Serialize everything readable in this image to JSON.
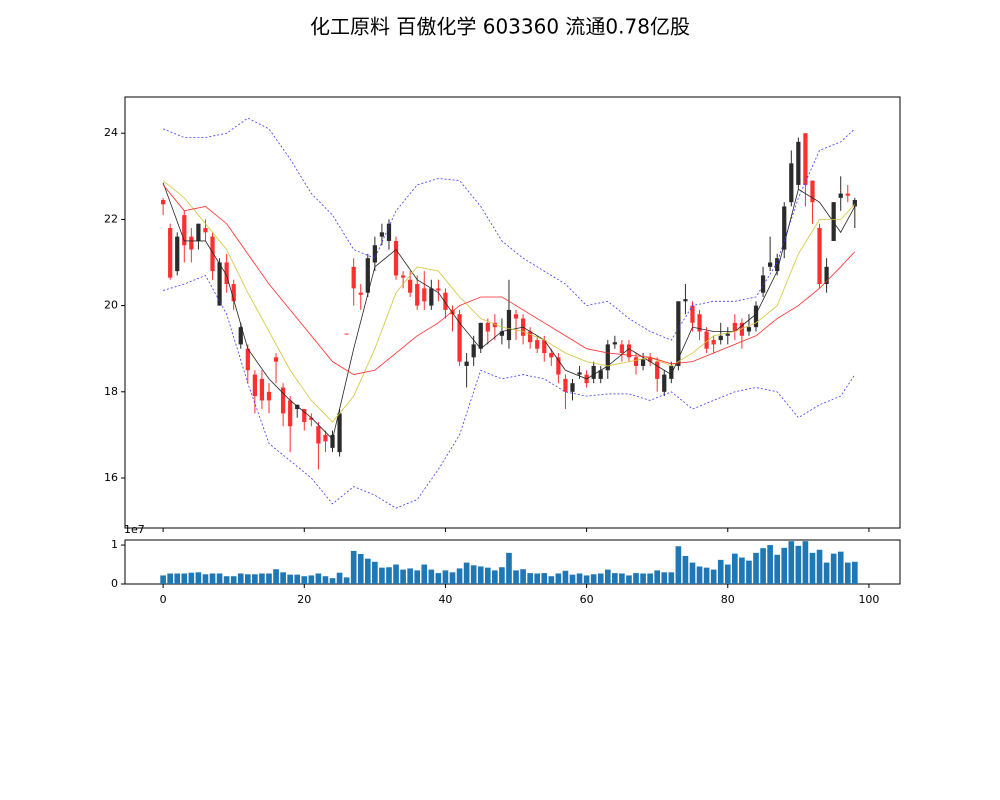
{
  "chart_data": [
    {
      "type": "candlestick",
      "title": "化工原料 百傲化学 603360 流通0.78亿股",
      "x": [
        0,
        1,
        2,
        3,
        4,
        5,
        6,
        7,
        8,
        9,
        10,
        11,
        12,
        13,
        14,
        15,
        16,
        17,
        18,
        19,
        20,
        21,
        22,
        23,
        24,
        25,
        26,
        27,
        28,
        29,
        30,
        31,
        32,
        33,
        34,
        35,
        36,
        37,
        38,
        39,
        40,
        41,
        42,
        43,
        44,
        45,
        46,
        47,
        48,
        49,
        50,
        51,
        52,
        53,
        54,
        55,
        56,
        57,
        58,
        59,
        60,
        61,
        62,
        63,
        64,
        65,
        66,
        67,
        68,
        69,
        70,
        71,
        72,
        73,
        74,
        75,
        76,
        77,
        78,
        79,
        80,
        81,
        82,
        83,
        84,
        85,
        86,
        87,
        88,
        89,
        90,
        91,
        92,
        93,
        94,
        95,
        96,
        97,
        98
      ],
      "open": [
        22.45,
        21.8,
        20.8,
        22.1,
        21.6,
        21.5,
        21.8,
        21.6,
        20.0,
        21.0,
        20.5,
        19.1,
        19.0,
        18.4,
        18.3,
        18.0,
        18.8,
        18.1,
        17.8,
        17.6,
        17.6,
        17.4,
        17.2,
        17.0,
        16.7,
        16.6,
        19.35,
        20.9,
        20.3,
        20.3,
        21.0,
        21.6,
        21.5,
        21.5,
        20.7,
        20.6,
        20.5,
        20.4,
        20.0,
        20.4,
        20.3,
        19.9,
        19.8,
        18.6,
        18.8,
        19.0,
        19.6,
        19.6,
        19.3,
        19.2,
        19.8,
        19.7,
        19.4,
        19.2,
        19.2,
        18.9,
        18.8,
        18.3,
        18.0,
        18.4,
        18.4,
        18.3,
        18.3,
        18.5,
        19.1,
        19.1,
        19.1,
        18.8,
        18.6,
        18.8,
        18.7,
        18.0,
        18.3,
        18.6,
        20.1,
        20.0,
        19.8,
        19.4,
        19.2,
        19.2,
        19.3,
        19.6,
        19.6,
        19.4,
        19.5,
        20.3,
        20.9,
        20.8,
        21.3,
        22.4,
        22.8,
        24.0,
        22.9,
        21.8,
        20.5,
        21.5,
        22.5,
        22.6,
        22.3
      ],
      "high": [
        22.5,
        21.9,
        21.7,
        22.2,
        21.8,
        21.9,
        22.0,
        21.7,
        21.1,
        21.2,
        20.6,
        19.6,
        19.1,
        18.5,
        18.5,
        18.2,
        18.9,
        18.2,
        17.9,
        17.7,
        17.6,
        17.5,
        17.3,
        17.1,
        17.1,
        17.6,
        19.35,
        21.1,
        20.5,
        21.2,
        21.6,
        21.9,
        22.0,
        21.6,
        20.8,
        20.8,
        20.7,
        20.8,
        20.6,
        20.6,
        20.4,
        20.0,
        19.9,
        18.9,
        19.3,
        19.6,
        19.7,
        19.8,
        19.7,
        20.6,
        19.9,
        19.8,
        19.5,
        19.3,
        19.3,
        19.0,
        18.9,
        18.4,
        18.3,
        18.6,
        18.5,
        18.7,
        18.6,
        19.2,
        19.3,
        19.2,
        19.2,
        18.9,
        18.9,
        18.9,
        18.8,
        18.5,
        18.7,
        20.1,
        20.5,
        20.1,
        19.9,
        19.5,
        19.3,
        19.6,
        19.5,
        19.8,
        19.7,
        19.8,
        20.1,
        20.9,
        21.6,
        21.2,
        22.4,
        23.6,
        23.9,
        24.0,
        22.9,
        21.9,
        21.1,
        22.4,
        23.0,
        22.8,
        22.5
      ],
      "low": [
        22.1,
        20.6,
        20.7,
        21.0,
        21.0,
        21.3,
        21.5,
        20.6,
        20.0,
        20.3,
        19.9,
        19.0,
        18.2,
        17.5,
        17.6,
        17.5,
        18.2,
        17.2,
        16.6,
        17.4,
        17.1,
        17.2,
        16.2,
        16.6,
        16.6,
        16.5,
        19.33,
        20.0,
        19.9,
        20.2,
        20.8,
        21.4,
        21.3,
        20.6,
        20.4,
        20.2,
        19.9,
        19.9,
        19.9,
        20.1,
        19.7,
        19.4,
        18.6,
        18.1,
        18.6,
        18.9,
        19.1,
        19.2,
        19.1,
        19.0,
        19.2,
        19.1,
        19.0,
        18.9,
        18.7,
        18.6,
        18.2,
        17.6,
        17.8,
        18.3,
        18.1,
        18.2,
        18.2,
        18.3,
        19.0,
        18.7,
        18.7,
        18.4,
        18.5,
        18.6,
        18.0,
        17.9,
        18.2,
        18.5,
        19.8,
        19.4,
        19.2,
        18.9,
        18.9,
        19.1,
        19.1,
        19.2,
        19.0,
        19.3,
        19.4,
        20.2,
        20.8,
        20.7,
        21.1,
        22.3,
        22.7,
        22.3,
        21.9,
        20.4,
        20.3,
        21.5,
        22.2,
        22.4,
        21.8
      ],
      "close": [
        22.35,
        20.65,
        21.6,
        21.4,
        21.3,
        21.9,
        21.7,
        20.8,
        21.0,
        20.5,
        20.1,
        19.5,
        18.5,
        17.9,
        17.8,
        17.8,
        18.7,
        17.5,
        17.2,
        17.7,
        17.3,
        17.35,
        16.8,
        16.85,
        17.0,
        17.5,
        19.33,
        20.4,
        20.25,
        21.1,
        21.4,
        21.7,
        21.9,
        20.7,
        20.65,
        20.3,
        20.0,
        20.1,
        20.4,
        20.35,
        19.9,
        19.8,
        18.7,
        18.7,
        19.1,
        19.6,
        19.4,
        19.5,
        19.4,
        19.9,
        19.7,
        19.3,
        19.15,
        19.0,
        18.9,
        18.8,
        18.4,
        18.0,
        18.2,
        18.45,
        18.2,
        18.6,
        18.5,
        19.1,
        19.15,
        18.9,
        18.8,
        18.6,
        18.75,
        18.7,
        18.3,
        18.4,
        18.6,
        20.1,
        20.15,
        19.6,
        19.4,
        19.0,
        19.1,
        19.3,
        19.35,
        19.4,
        19.3,
        19.5,
        20.0,
        20.7,
        21.0,
        21.1,
        22.3,
        23.3,
        23.8,
        22.8,
        22.4,
        20.5,
        20.9,
        22.4,
        22.6,
        22.55,
        22.45
      ],
      "up_color": "#2b2b2b",
      "down_color": "#ff2f2f",
      "lines": [
        {
          "color": "#222222",
          "dashed": false,
          "x": [
            0,
            3,
            6,
            9,
            12,
            15,
            18,
            21,
            24,
            27,
            30,
            33,
            36,
            39,
            42,
            45,
            48,
            51,
            54,
            57,
            60,
            63,
            66,
            69,
            72,
            75,
            78,
            81,
            84,
            87,
            90,
            93,
            96,
            98
          ],
          "values": [
            22.85,
            21.5,
            21.5,
            20.7,
            19.0,
            18.3,
            17.8,
            17.4,
            16.9,
            19.0,
            20.9,
            21.3,
            20.6,
            20.3,
            19.6,
            19.0,
            19.4,
            19.5,
            19.2,
            18.5,
            18.3,
            18.6,
            19.0,
            18.7,
            18.4,
            19.5,
            19.4,
            19.4,
            19.8,
            20.8,
            22.7,
            22.4,
            21.7,
            22.3
          ]
        },
        {
          "color": "#d4c43a",
          "dashed": false,
          "x": [
            0,
            3,
            6,
            9,
            12,
            15,
            18,
            21,
            24,
            27,
            30,
            33,
            36,
            39,
            42,
            45,
            48,
            51,
            54,
            57,
            60,
            63,
            66,
            69,
            72,
            75,
            78,
            81,
            84,
            87,
            90,
            93,
            96,
            98
          ],
          "values": [
            22.9,
            22.5,
            21.9,
            21.3,
            20.3,
            19.4,
            18.5,
            17.8,
            17.3,
            17.9,
            19.0,
            20.3,
            20.9,
            20.8,
            20.2,
            19.7,
            19.5,
            19.4,
            19.2,
            18.9,
            18.7,
            18.6,
            18.7,
            18.8,
            18.6,
            18.9,
            19.3,
            19.4,
            19.6,
            20.0,
            21.2,
            22.0,
            22.0,
            22.35
          ]
        },
        {
          "color": "#ff2a2a",
          "dashed": false,
          "x": [
            0,
            3,
            6,
            9,
            12,
            15,
            18,
            21,
            24,
            27,
            30,
            33,
            36,
            39,
            42,
            45,
            48,
            51,
            54,
            57,
            60,
            63,
            66,
            69,
            72,
            75,
            78,
            81,
            84,
            87,
            90,
            93,
            96,
            98
          ],
          "values": [
            22.8,
            22.2,
            22.3,
            21.9,
            21.2,
            20.5,
            19.9,
            19.3,
            18.7,
            18.4,
            18.5,
            18.9,
            19.3,
            19.6,
            20.0,
            20.2,
            20.2,
            19.9,
            19.6,
            19.3,
            19.0,
            18.9,
            18.85,
            18.8,
            18.65,
            18.7,
            18.9,
            19.1,
            19.3,
            19.7,
            20.0,
            20.4,
            20.9,
            21.25
          ]
        },
        {
          "color": "#3a3aff",
          "dashed": true,
          "x": [
            0,
            3,
            6,
            9,
            12,
            15,
            18,
            21,
            24,
            27,
            30,
            33,
            36,
            39,
            42,
            45,
            48,
            51,
            54,
            57,
            60,
            63,
            66,
            69,
            72,
            75,
            78,
            81,
            84,
            87,
            90,
            93,
            96,
            98
          ],
          "values": [
            24.1,
            23.9,
            23.9,
            24.0,
            24.35,
            24.1,
            23.4,
            22.6,
            22.1,
            21.3,
            21.1,
            22.2,
            22.8,
            22.95,
            22.9,
            22.3,
            21.5,
            21.1,
            20.8,
            20.5,
            20.0,
            20.1,
            19.7,
            19.4,
            19.2,
            20.0,
            20.1,
            20.1,
            20.2,
            21.0,
            22.5,
            23.6,
            23.8,
            24.1
          ]
        },
        {
          "color": "#3a3aff",
          "dashed": true,
          "x": [
            0,
            3,
            6,
            9,
            12,
            15,
            18,
            21,
            24,
            27,
            30,
            33,
            36,
            39,
            42,
            45,
            48,
            51,
            54,
            57,
            60,
            63,
            66,
            69,
            72,
            75,
            78,
            81,
            84,
            87,
            90,
            93,
            96,
            98
          ],
          "values": [
            20.35,
            20.5,
            20.7,
            19.8,
            18.2,
            16.8,
            16.4,
            16.0,
            15.4,
            15.8,
            15.6,
            15.3,
            15.5,
            16.2,
            17.0,
            18.5,
            18.3,
            18.4,
            18.3,
            18.0,
            17.9,
            17.95,
            17.95,
            17.8,
            18.0,
            17.6,
            17.8,
            18.0,
            18.1,
            18.0,
            17.4,
            17.7,
            17.9,
            18.4
          ]
        }
      ],
      "xlim": [
        -5.4,
        104.4
      ],
      "ylim": [
        14.84,
        24.84
      ],
      "yticks": [
        16,
        18,
        20,
        22,
        24
      ]
    },
    {
      "type": "bar",
      "x": [
        0,
        1,
        2,
        3,
        4,
        5,
        6,
        7,
        8,
        9,
        10,
        11,
        12,
        13,
        14,
        15,
        16,
        17,
        18,
        19,
        20,
        21,
        22,
        23,
        24,
        25,
        26,
        27,
        28,
        29,
        30,
        31,
        32,
        33,
        34,
        35,
        36,
        37,
        38,
        39,
        40,
        41,
        42,
        43,
        44,
        45,
        46,
        47,
        48,
        49,
        50,
        51,
        52,
        53,
        54,
        55,
        56,
        57,
        58,
        59,
        60,
        61,
        62,
        63,
        64,
        65,
        66,
        67,
        68,
        69,
        70,
        71,
        72,
        73,
        74,
        75,
        76,
        77,
        78,
        79,
        80,
        81,
        82,
        83,
        84,
        85,
        86,
        87,
        88,
        89,
        90,
        91,
        92,
        93,
        94,
        95,
        96,
        97,
        98
      ],
      "values": [
        0.22,
        0.27,
        0.27,
        0.27,
        0.29,
        0.3,
        0.25,
        0.27,
        0.27,
        0.2,
        0.2,
        0.27,
        0.25,
        0.25,
        0.27,
        0.27,
        0.38,
        0.3,
        0.24,
        0.24,
        0.2,
        0.22,
        0.27,
        0.2,
        0.15,
        0.29,
        0.17,
        0.85,
        0.77,
        0.65,
        0.57,
        0.42,
        0.43,
        0.5,
        0.37,
        0.4,
        0.35,
        0.5,
        0.37,
        0.28,
        0.35,
        0.3,
        0.4,
        0.55,
        0.48,
        0.45,
        0.42,
        0.35,
        0.43,
        0.8,
        0.35,
        0.38,
        0.28,
        0.27,
        0.28,
        0.2,
        0.27,
        0.34,
        0.24,
        0.27,
        0.22,
        0.25,
        0.27,
        0.37,
        0.28,
        0.27,
        0.22,
        0.28,
        0.27,
        0.27,
        0.35,
        0.3,
        0.3,
        0.97,
        0.72,
        0.55,
        0.45,
        0.42,
        0.37,
        0.62,
        0.5,
        0.78,
        0.68,
        0.6,
        0.8,
        0.92,
        1.0,
        0.75,
        0.93,
        1.1,
        0.98,
        1.1,
        0.8,
        0.88,
        0.55,
        0.78,
        0.83,
        0.55,
        0.57
      ],
      "color": "#1f77b4",
      "offset_label": "1e7",
      "xlim": [
        -5.4,
        104.4
      ],
      "ylim": [
        0,
        1.13
      ],
      "yticks": [
        0,
        1
      ],
      "xticks": [
        0,
        20,
        40,
        60,
        80,
        100
      ]
    }
  ]
}
